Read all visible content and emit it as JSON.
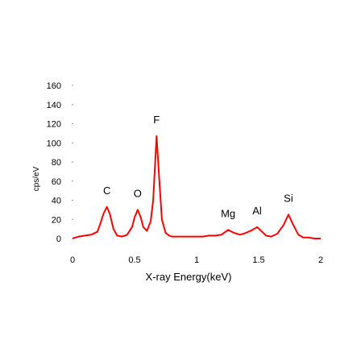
{
  "chart_data": {
    "type": "line",
    "title": "",
    "xlabel": "X-ray Energy(keV)",
    "ylabel": "cps/eV",
    "xlim": [
      0,
      2
    ],
    "ylim": [
      0,
      160
    ],
    "xticks": [
      {
        "value": 0,
        "label": "0"
      },
      {
        "value": 0.5,
        "label": "0.5"
      },
      {
        "value": 1,
        "label": "1"
      },
      {
        "value": 1.5,
        "label": "1.5"
      },
      {
        "value": 2,
        "label": "2"
      }
    ],
    "yticks": [
      0,
      20,
      40,
      60,
      80,
      100,
      120,
      140,
      160
    ],
    "grid": false,
    "line_color": "#ff0000",
    "series": [
      {
        "x": [
          0.0,
          0.05,
          0.1,
          0.15,
          0.2,
          0.22,
          0.25,
          0.277,
          0.3,
          0.33,
          0.36,
          0.4,
          0.44,
          0.48,
          0.5,
          0.525,
          0.55,
          0.57,
          0.6,
          0.63,
          0.65,
          0.677,
          0.7,
          0.72,
          0.75,
          0.78,
          0.8,
          0.85,
          0.9,
          0.95,
          1.0,
          1.05,
          1.1,
          1.15,
          1.2,
          1.254,
          1.3,
          1.35,
          1.4,
          1.45,
          1.487,
          1.52,
          1.56,
          1.6,
          1.65,
          1.7,
          1.74,
          1.78,
          1.82,
          1.86,
          1.9,
          1.95,
          2.0
        ],
        "y": [
          0,
          2,
          3,
          4,
          7,
          14,
          26,
          33,
          26,
          10,
          3,
          2,
          4,
          12,
          22,
          30,
          22,
          12,
          8,
          18,
          40,
          107,
          60,
          20,
          6,
          3,
          2,
          2,
          2,
          2,
          2,
          2,
          3,
          3,
          4,
          9,
          6,
          4,
          6,
          9,
          12,
          8,
          3,
          2,
          5,
          14,
          25,
          14,
          4,
          1,
          1,
          0,
          0
        ]
      }
    ],
    "annotations": [
      {
        "label": "C",
        "x": 0.277
      },
      {
        "label": "O",
        "x": 0.525
      },
      {
        "label": "F",
        "x": 0.677
      },
      {
        "label": "Mg",
        "x": 1.254
      },
      {
        "label": "Al",
        "x": 1.487
      },
      {
        "label": "Si",
        "x": 1.74
      }
    ]
  }
}
